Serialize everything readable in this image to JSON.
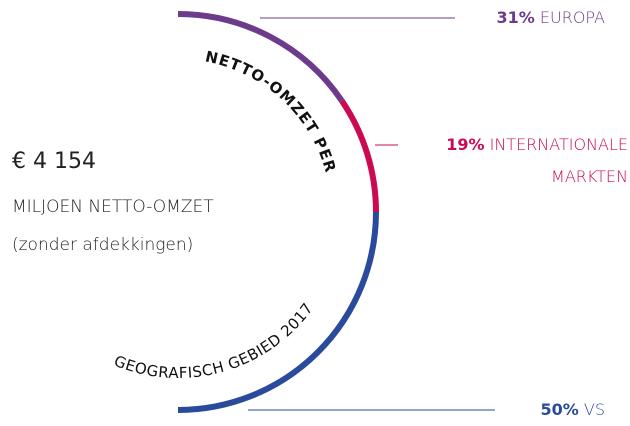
{
  "chart_data": {
    "type": "pie",
    "title": "NETTO-OMZET PER",
    "subtitle": "GEOGRAFISCH GEBIED 2017",
    "annotations": [
      "€ 4 154",
      "MILJOEN NETTO-OMZET",
      "(zonder afdekkingen)"
    ],
    "categories": [
      "EUROPA",
      "INTERNATIONALE MARKTEN",
      "VS"
    ],
    "values": [
      31,
      19,
      50
    ],
    "value_labels": [
      "31%",
      "19%",
      "50%"
    ],
    "colors": [
      "#6d3b8c",
      "#cc0a54",
      "#2a4b9b"
    ]
  }
}
